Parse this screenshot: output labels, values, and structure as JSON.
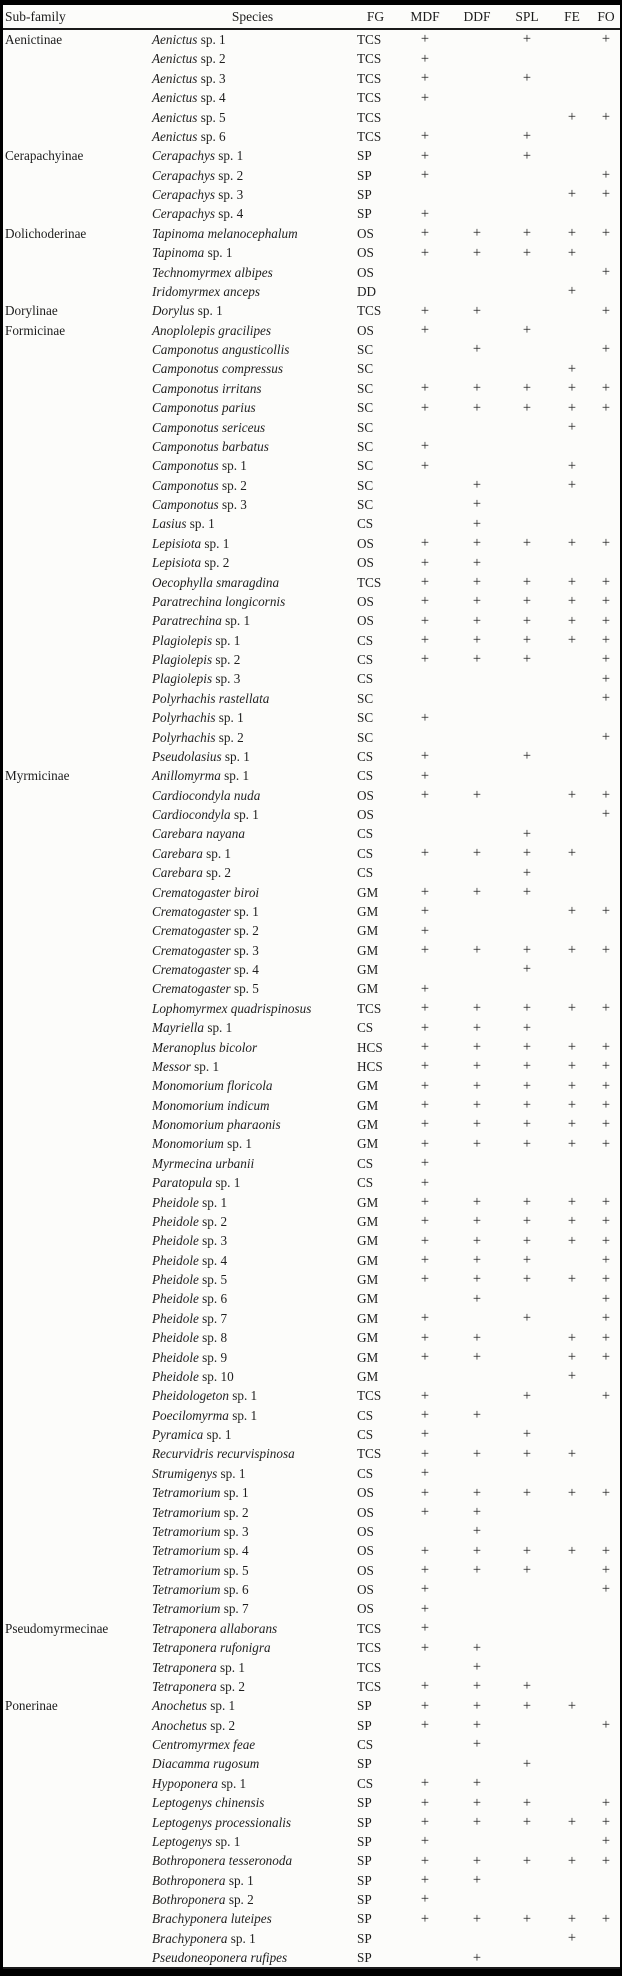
{
  "meta": {
    "description": "Scanned journal table: ant species by sub-family with functional group (FG) and presence (+) in habitats",
    "mark_order": "MDF, DDF, SPL, FE, FO",
    "mark_symbol": "+",
    "colors": {
      "paper": "#fcfcfa",
      "ink": "#1b1b1b",
      "frame": "#000000"
    }
  },
  "header": {
    "subfamily": "Sub-family",
    "species": "Species",
    "fg": "FG",
    "mdf": "MDF",
    "ddf": "DDF",
    "spl": "SPL",
    "fe": "FE",
    "fo": "FO"
  },
  "rows": [
    {
      "sf": "Aenictinae",
      "i": "Aenictus",
      "r": "sp. 1",
      "fg": "TCS",
      "m": "+.+.+"
    },
    {
      "sf": "",
      "i": "Aenictus",
      "r": "sp. 2",
      "fg": "TCS",
      "m": "+...."
    },
    {
      "sf": "",
      "i": "Aenictus",
      "r": "sp. 3",
      "fg": "TCS",
      "m": "+.+.."
    },
    {
      "sf": "",
      "i": "Aenictus",
      "r": "sp. 4",
      "fg": "TCS",
      "m": "+...."
    },
    {
      "sf": "",
      "i": "Aenictus",
      "r": "sp. 5",
      "fg": "TCS",
      "m": "...++"
    },
    {
      "sf": "",
      "i": "Aenictus",
      "r": "sp. 6",
      "fg": "TCS",
      "m": "+.+.."
    },
    {
      "sf": "Cerapachyinae",
      "i": "Cerapachys",
      "r": "sp. 1",
      "fg": "SP",
      "m": "+.+.."
    },
    {
      "sf": "",
      "i": "Cerapachys",
      "r": "sp. 2",
      "fg": "SP",
      "m": "+...+"
    },
    {
      "sf": "",
      "i": "Cerapachys",
      "r": "sp. 3",
      "fg": "SP",
      "m": "...++"
    },
    {
      "sf": "",
      "i": "Cerapachys",
      "r": "sp. 4",
      "fg": "SP",
      "m": "+...."
    },
    {
      "sf": "Dolichoderinae",
      "i": "Tapinoma melanocephalum",
      "r": "",
      "fg": "OS",
      "m": "+++++"
    },
    {
      "sf": "",
      "i": "Tapinoma",
      "r": "sp. 1",
      "fg": "OS",
      "m": "++++."
    },
    {
      "sf": "",
      "i": "Technomyrmex albipes",
      "r": "",
      "fg": "OS",
      "m": "....+"
    },
    {
      "sf": "",
      "i": "Iridomyrmex anceps",
      "r": "",
      "fg": "DD",
      "m": "...+."
    },
    {
      "sf": "Dorylinae",
      "i": "Dorylus",
      "r": "sp. 1",
      "fg": "TCS",
      "m": "++..+"
    },
    {
      "sf": "Formicinae",
      "i": "Anoplolepis gracilipes",
      "r": "",
      "fg": "OS",
      "m": "+.+.."
    },
    {
      "sf": "",
      "i": "Camponotus angusticollis",
      "r": "",
      "fg": "SC",
      "m": ".+..+"
    },
    {
      "sf": "",
      "i": "Camponotus compressus",
      "r": "",
      "fg": "SC",
      "m": "...+."
    },
    {
      "sf": "",
      "i": "Camponotus irritans",
      "r": "",
      "fg": "SC",
      "m": "+++++"
    },
    {
      "sf": "",
      "i": "Camponotus parius",
      "r": "",
      "fg": "SC",
      "m": "+++++"
    },
    {
      "sf": "",
      "i": "Camponotus sericeus",
      "r": "",
      "fg": "SC",
      "m": "...+."
    },
    {
      "sf": "",
      "i": "Camponotus barbatus",
      "r": "",
      "fg": "SC",
      "m": "+...."
    },
    {
      "sf": "",
      "i": "Camponotus",
      "r": "sp. 1",
      "fg": "SC",
      "m": "+..+."
    },
    {
      "sf": "",
      "i": "Camponotus",
      "r": "sp. 2",
      "fg": "SC",
      "m": ".+.+."
    },
    {
      "sf": "",
      "i": "Camponotus",
      "r": "sp. 3",
      "fg": "SC",
      "m": ".+..."
    },
    {
      "sf": "",
      "i": "Lasius",
      "r": "sp. 1",
      "fg": "CS",
      "m": ".+..."
    },
    {
      "sf": "",
      "i": "Lepisiota",
      "r": "sp. 1",
      "fg": "OS",
      "m": "+++++"
    },
    {
      "sf": "",
      "i": "Lepisiota",
      "r": "sp. 2",
      "fg": "OS",
      "m": "++..."
    },
    {
      "sf": "",
      "i": "Oecophylla smaragdina",
      "r": "",
      "fg": "TCS",
      "m": "+++++"
    },
    {
      "sf": "",
      "i": "Paratrechina longicornis",
      "r": "",
      "fg": "OS",
      "m": "+++++"
    },
    {
      "sf": "",
      "i": "Paratrechina",
      "r": "sp. 1",
      "fg": "OS",
      "m": "+++++"
    },
    {
      "sf": "",
      "i": "Plagiolepis",
      "r": "sp. 1",
      "fg": "CS",
      "m": "+++++"
    },
    {
      "sf": "",
      "i": "Plagiolepis",
      "r": "sp. 2",
      "fg": "CS",
      "m": "+++.+"
    },
    {
      "sf": "",
      "i": "Plagiolepis",
      "r": "sp. 3",
      "fg": "CS",
      "m": "....+"
    },
    {
      "sf": "",
      "i": "Polyrhachis rastellata",
      "r": "",
      "fg": "SC",
      "m": "....+"
    },
    {
      "sf": "",
      "i": "Polyrhachis",
      "r": "sp. 1",
      "fg": "SC",
      "m": "+...."
    },
    {
      "sf": "",
      "i": "Polyrhachis",
      "r": "sp. 2",
      "fg": "SC",
      "m": "....+"
    },
    {
      "sf": "",
      "i": "Pseudolasius",
      "r": "sp. 1",
      "fg": "CS",
      "m": "+.+.."
    },
    {
      "sf": "Myrmicinae",
      "i": "Anillomyrma",
      "r": "sp. 1",
      "fg": "CS",
      "m": "+...."
    },
    {
      "sf": "",
      "i": "Cardiocondyla nuda",
      "r": "",
      "fg": "OS",
      "m": "++.++"
    },
    {
      "sf": "",
      "i": "Cardiocondyla",
      "r": "sp. 1",
      "fg": "OS",
      "m": "....+"
    },
    {
      "sf": "",
      "i": "Carebara nayana",
      "r": "",
      "fg": "CS",
      "m": "..+.."
    },
    {
      "sf": "",
      "i": "Carebara",
      "r": "sp. 1",
      "fg": "CS",
      "m": "++++."
    },
    {
      "sf": "",
      "i": "Carebara",
      "r": "sp. 2",
      "fg": "CS",
      "m": "..+.."
    },
    {
      "sf": "",
      "i": "Crematogaster biroi",
      "r": "",
      "fg": "GM",
      "m": "+++.."
    },
    {
      "sf": "",
      "i": "Crematogaster",
      "r": "sp. 1",
      "fg": "GM",
      "m": "+..++"
    },
    {
      "sf": "",
      "i": "Crematogaster",
      "r": "sp. 2",
      "fg": "GM",
      "m": "+...."
    },
    {
      "sf": "",
      "i": "Crematogaster",
      "r": "sp. 3",
      "fg": "GM",
      "m": "+++++"
    },
    {
      "sf": "",
      "i": "Crematogaster",
      "r": "sp. 4",
      "fg": "GM",
      "m": "..+.."
    },
    {
      "sf": "",
      "i": "Crematogaster",
      "r": "sp. 5",
      "fg": "GM",
      "m": "+...."
    },
    {
      "sf": "",
      "i": "Lophomyrmex quadrispinosus",
      "r": "",
      "fg": "TCS",
      "m": "+++++"
    },
    {
      "sf": "",
      "i": "Mayriella",
      "r": "sp. 1",
      "fg": "CS",
      "m": "+++.."
    },
    {
      "sf": "",
      "i": "Meranoplus bicolor",
      "r": "",
      "fg": "HCS",
      "m": "+++++"
    },
    {
      "sf": "",
      "i": "Messor",
      "r": "sp. 1",
      "fg": "HCS",
      "m": "+++++"
    },
    {
      "sf": "",
      "i": "Monomorium floricola",
      "r": "",
      "fg": "GM",
      "m": "+++++"
    },
    {
      "sf": "",
      "i": "Monomorium indicum",
      "r": "",
      "fg": "GM",
      "m": "+++++"
    },
    {
      "sf": "",
      "i": "Monomorium pharaonis",
      "r": "",
      "fg": "GM",
      "m": "+++++"
    },
    {
      "sf": "",
      "i": "Monomorium",
      "r": "sp. 1",
      "fg": "GM",
      "m": "+++++"
    },
    {
      "sf": "",
      "i": "Myrmecina urbanii",
      "r": "",
      "fg": "CS",
      "m": "+...."
    },
    {
      "sf": "",
      "i": "Paratopula",
      "r": "sp. 1",
      "fg": "CS",
      "m": "+...."
    },
    {
      "sf": "",
      "i": "Pheidole",
      "r": "sp. 1",
      "fg": "GM",
      "m": "+++++"
    },
    {
      "sf": "",
      "i": "Pheidole",
      "r": "sp. 2",
      "fg": "GM",
      "m": "+++++"
    },
    {
      "sf": "",
      "i": "Pheidole",
      "r": "sp. 3",
      "fg": "GM",
      "m": "+++++"
    },
    {
      "sf": "",
      "i": "Pheidole",
      "r": "sp. 4",
      "fg": "GM",
      "m": "+++.+"
    },
    {
      "sf": "",
      "i": "Pheidole",
      "r": "sp. 5",
      "fg": "GM",
      "m": "+++++"
    },
    {
      "sf": "",
      "i": "Pheidole",
      "r": "sp. 6",
      "fg": "GM",
      "m": ".+..+"
    },
    {
      "sf": "",
      "i": "Pheidole",
      "r": "sp. 7",
      "fg": "GM",
      "m": "+.+.+"
    },
    {
      "sf": "",
      "i": "Pheidole",
      "r": "sp. 8",
      "fg": "GM",
      "m": "++.++"
    },
    {
      "sf": "",
      "i": "Pheidole",
      "r": "sp. 9",
      "fg": "GM",
      "m": "++.++"
    },
    {
      "sf": "",
      "i": "Pheidole",
      "r": "sp. 10",
      "fg": "GM",
      "m": "...+."
    },
    {
      "sf": "",
      "i": "Pheidologeton",
      "r": "sp. 1",
      "fg": "TCS",
      "m": "+.+.+"
    },
    {
      "sf": "",
      "i": "Poecilomyrma",
      "r": "sp. 1",
      "fg": "CS",
      "m": "++..."
    },
    {
      "sf": "",
      "i": "Pyramica",
      "r": "sp. 1",
      "fg": "CS",
      "m": "+.+.."
    },
    {
      "sf": "",
      "i": "Recurvidris recurvispinosa",
      "r": "",
      "fg": "TCS",
      "m": "++++."
    },
    {
      "sf": "",
      "i": "Strumigenys",
      "r": "sp. 1",
      "fg": "CS",
      "m": "+...."
    },
    {
      "sf": "",
      "i": "Tetramorium",
      "r": "sp. 1",
      "fg": "OS",
      "m": "+++++"
    },
    {
      "sf": "",
      "i": "Tetramorium",
      "r": "sp. 2",
      "fg": "OS",
      "m": "++..."
    },
    {
      "sf": "",
      "i": "Tetramorium",
      "r": "sp. 3",
      "fg": "OS",
      "m": ".+..."
    },
    {
      "sf": "",
      "i": "Tetramorium",
      "r": "sp. 4",
      "fg": "OS",
      "m": "+++++"
    },
    {
      "sf": "",
      "i": "Tetramorium",
      "r": "sp. 5",
      "fg": "OS",
      "m": "+++.+"
    },
    {
      "sf": "",
      "i": "Tetramorium",
      "r": "sp. 6",
      "fg": "OS",
      "m": "+...+"
    },
    {
      "sf": "",
      "i": "Tetramorium",
      "r": "sp. 7",
      "fg": "OS",
      "m": "+...."
    },
    {
      "sf": "Pseudomyrmecinae",
      "i": "Tetraponera allaborans",
      "r": "",
      "fg": "TCS",
      "m": "+...."
    },
    {
      "sf": "",
      "i": "Tetraponera rufonigra",
      "r": "",
      "fg": "TCS",
      "m": "++..."
    },
    {
      "sf": "",
      "i": "Tetraponera",
      "r": "sp. 1",
      "fg": "TCS",
      "m": ".+..."
    },
    {
      "sf": "",
      "i": "Tetraponera",
      "r": "sp. 2",
      "fg": "TCS",
      "m": "+++.."
    },
    {
      "sf": "Ponerinae",
      "i": "Anochetus",
      "r": "sp. 1",
      "fg": "SP",
      "m": "++++."
    },
    {
      "sf": "",
      "i": "Anochetus",
      "r": "sp. 2",
      "fg": "SP",
      "m": "++..+"
    },
    {
      "sf": "",
      "i": "Centromyrmex feae",
      "r": "",
      "fg": "CS",
      "m": ".+..."
    },
    {
      "sf": "",
      "i": "Diacamma rugosum",
      "r": "",
      "fg": "SP",
      "m": "..+.."
    },
    {
      "sf": "",
      "i": "Hypoponera",
      "r": "sp. 1",
      "fg": "CS",
      "m": "++..."
    },
    {
      "sf": "",
      "i": "Leptogenys chinensis",
      "r": "",
      "fg": "SP",
      "m": "+++.+"
    },
    {
      "sf": "",
      "i": "Leptogenys processionalis",
      "r": "",
      "fg": "SP",
      "m": "+++++"
    },
    {
      "sf": "",
      "i": "Leptogenys",
      "r": "sp. 1",
      "fg": "SP",
      "m": "+...+"
    },
    {
      "sf": "",
      "i": "Bothroponera tesseronoda",
      "r": "",
      "fg": "SP",
      "m": "+++++"
    },
    {
      "sf": "",
      "i": "Bothroponera",
      "r": "sp. 1",
      "fg": "SP",
      "m": "++..."
    },
    {
      "sf": "",
      "i": "Bothroponera",
      "r": "sp. 2",
      "fg": "SP",
      "m": "+...."
    },
    {
      "sf": "",
      "i": "Brachyponera luteipes",
      "r": "",
      "fg": "SP",
      "m": "+++++"
    },
    {
      "sf": "",
      "i": "Brachyponera",
      "r": "sp. 1",
      "fg": "SP",
      "m": "...+."
    },
    {
      "sf": "",
      "i": "Pseudoneoponera rufipes",
      "r": "",
      "fg": "SP",
      "m": ".+..."
    }
  ]
}
